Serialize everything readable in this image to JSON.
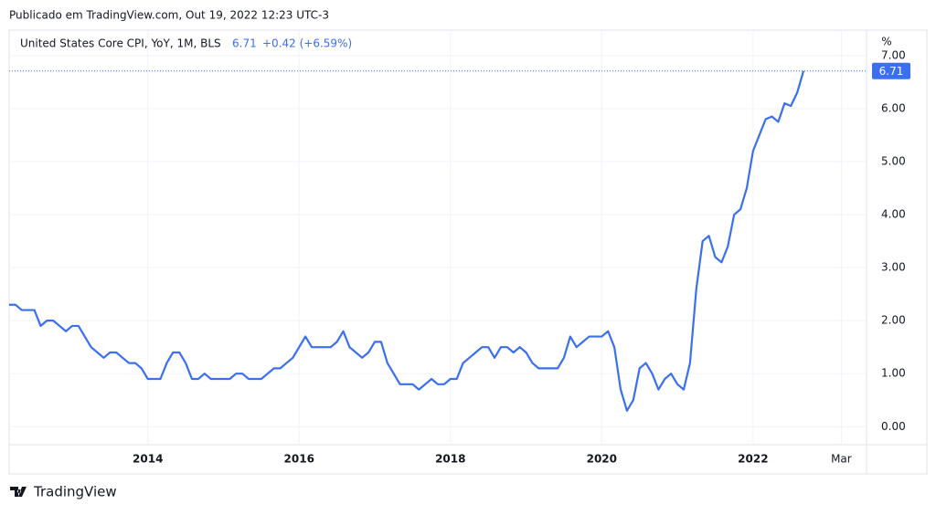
{
  "header": "Publicado em TradingView.com, Out 19, 2022 12:23 UTC-3",
  "footer": "TradingView",
  "chart_data": {
    "type": "line",
    "title": "United States Core CPI, YoY, 1M, BLS",
    "change": "+0.42 (+6.59%)",
    "y_unit": "%",
    "x": [
      "2012-03",
      "2012-04",
      "2012-05",
      "2012-06",
      "2012-07",
      "2012-08",
      "2012-09",
      "2012-10",
      "2012-11",
      "2012-12",
      "2013-01",
      "2013-02",
      "2013-03",
      "2013-04",
      "2013-05",
      "2013-06",
      "2013-07",
      "2013-08",
      "2013-09",
      "2013-10",
      "2013-11",
      "2013-12",
      "2014-01",
      "2014-02",
      "2014-03",
      "2014-04",
      "2014-05",
      "2014-06",
      "2014-07",
      "2014-08",
      "2014-09",
      "2014-10",
      "2014-11",
      "2014-12",
      "2015-01",
      "2015-02",
      "2015-03",
      "2015-04",
      "2015-05",
      "2015-06",
      "2015-07",
      "2015-08",
      "2015-09",
      "2015-10",
      "2015-11",
      "2015-12",
      "2016-01",
      "2016-02",
      "2016-03",
      "2016-04",
      "2016-05",
      "2016-06",
      "2016-07",
      "2016-08",
      "2016-09",
      "2016-10",
      "2016-11",
      "2016-12",
      "2017-01",
      "2017-02",
      "2017-03",
      "2017-04",
      "2017-05",
      "2017-06",
      "2017-07",
      "2017-08",
      "2017-09",
      "2017-10",
      "2017-11",
      "2017-12",
      "2018-01",
      "2018-02",
      "2018-03",
      "2018-04",
      "2018-05",
      "2018-06",
      "2018-07",
      "2018-08",
      "2018-09",
      "2018-10",
      "2018-11",
      "2018-12",
      "2019-01",
      "2019-02",
      "2019-03",
      "2019-04",
      "2019-05",
      "2019-06",
      "2019-07",
      "2019-08",
      "2019-09",
      "2019-10",
      "2019-11",
      "2019-12",
      "2020-01",
      "2020-02",
      "2020-03",
      "2020-04",
      "2020-05",
      "2020-06",
      "2020-07",
      "2020-08",
      "2020-09",
      "2020-10",
      "2020-11",
      "2020-12",
      "2021-01",
      "2021-02",
      "2021-03",
      "2021-04",
      "2021-05",
      "2021-06",
      "2021-07",
      "2021-08",
      "2021-09",
      "2021-10",
      "2021-11",
      "2021-12",
      "2022-01",
      "2022-02",
      "2022-03",
      "2022-04",
      "2022-05",
      "2022-06",
      "2022-07",
      "2022-08",
      "2022-09"
    ],
    "series": [
      {
        "name": "United States Core CPI, YoY, 1M, BLS",
        "color": "#3a6ff0",
        "values": [
          2.3,
          2.3,
          2.2,
          2.2,
          2.2,
          1.9,
          2.0,
          2.0,
          1.9,
          1.8,
          1.9,
          1.9,
          1.7,
          1.5,
          1.4,
          1.3,
          1.4,
          1.4,
          1.3,
          1.2,
          1.2,
          1.1,
          0.9,
          0.9,
          0.9,
          1.2,
          1.4,
          1.4,
          1.2,
          0.9,
          0.9,
          1.0,
          0.9,
          0.9,
          0.9,
          0.9,
          1.0,
          1.0,
          0.9,
          0.9,
          0.9,
          1.0,
          1.1,
          1.1,
          1.2,
          1.3,
          1.5,
          1.7,
          1.5,
          1.5,
          1.5,
          1.5,
          1.6,
          1.8,
          1.5,
          1.4,
          1.3,
          1.4,
          1.6,
          1.6,
          1.2,
          1.0,
          0.8,
          0.8,
          0.8,
          0.7,
          0.8,
          0.9,
          0.8,
          0.8,
          0.9,
          0.9,
          1.2,
          1.3,
          1.4,
          1.5,
          1.5,
          1.3,
          1.5,
          1.5,
          1.4,
          1.5,
          1.4,
          1.2,
          1.1,
          1.1,
          1.1,
          1.1,
          1.3,
          1.7,
          1.5,
          1.6,
          1.7,
          1.7,
          1.7,
          1.8,
          1.5,
          0.7,
          0.3,
          0.5,
          1.1,
          1.2,
          1.0,
          0.7,
          0.9,
          1.0,
          0.8,
          0.7,
          1.2,
          2.6,
          3.5,
          3.6,
          3.2,
          3.1,
          3.4,
          4.0,
          4.1,
          4.5,
          5.2,
          5.5,
          5.8,
          5.85,
          5.75,
          6.1,
          6.05,
          6.3,
          6.71
        ]
      }
    ],
    "xlim": [
      "2012-03",
      "2023-07"
    ],
    "xticks": [
      {
        "value": "2014-01",
        "label": "2014"
      },
      {
        "value": "2016-01",
        "label": "2016"
      },
      {
        "value": "2018-01",
        "label": "2018"
      },
      {
        "value": "2020-01",
        "label": "2020"
      },
      {
        "value": "2022-01",
        "label": "2022"
      },
      {
        "value": "2023-03",
        "label": "Mar"
      }
    ],
    "ylim": [
      -0.34,
      7.48
    ],
    "yticks": [
      {
        "value": 0,
        "label": "0.00"
      },
      {
        "value": 1,
        "label": "1.00"
      },
      {
        "value": 2,
        "label": "2.00"
      },
      {
        "value": 3,
        "label": "3.00"
      },
      {
        "value": 4,
        "label": "4.00"
      },
      {
        "value": 5,
        "label": "5.00"
      },
      {
        "value": 6,
        "label": "6.00"
      },
      {
        "value": 7,
        "label": "7.00"
      }
    ],
    "grid": true
  }
}
